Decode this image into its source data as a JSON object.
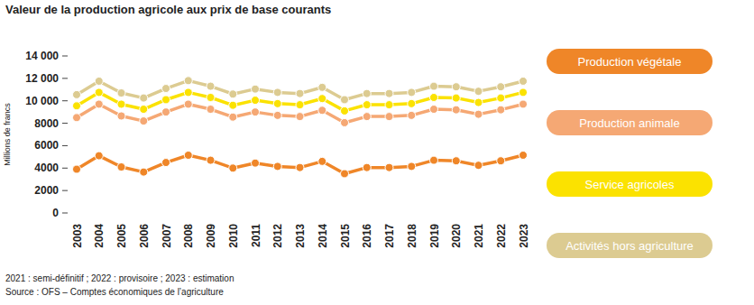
{
  "chart_data": {
    "type": "line",
    "title": "Valeur de la production agricole aux prix de base courants",
    "y_label": "Millions de francs",
    "notes": [
      "2021 : semi-définitif ; 2022 : provisoire ; 2023 : estimation",
      "Source : OFS – Comptes économiques de l’agriculture"
    ],
    "categories": [
      "2003",
      "2004",
      "2005",
      "2006",
      "2007",
      "2008",
      "2009",
      "2010",
      "2011",
      "2012",
      "2013",
      "2014",
      "2015",
      "2016",
      "2017",
      "2018",
      "2019",
      "2020",
      "2021",
      "2022",
      "2023"
    ],
    "stacked": true,
    "marker": "circle",
    "grid": false,
    "legend": "right",
    "ylim": [
      0,
      14000
    ],
    "yticks": [
      0,
      2000,
      4000,
      6000,
      8000,
      {
        "value": 10000,
        "label": "10 000"
      },
      {
        "value": 12000,
        "label": "12 000"
      },
      {
        "value": 14000,
        "label": "14 000"
      }
    ],
    "series": [
      {
        "name": "Production végétale",
        "color": "#ef8628",
        "values": [
          3900,
          5100,
          4100,
          3650,
          4500,
          5150,
          4700,
          4000,
          4450,
          4150,
          4050,
          4600,
          3500,
          4050,
          4050,
          4150,
          4700,
          4650,
          4250,
          4650,
          5150
        ]
      },
      {
        "name": "Production animale",
        "color": "#f5a874",
        "values": [
          4600,
          4600,
          4550,
          4550,
          4500,
          4550,
          4550,
          4550,
          4550,
          4550,
          4550,
          4550,
          4550,
          4550,
          4550,
          4550,
          4550,
          4550,
          4550,
          4550,
          4550
        ]
      },
      {
        "name": "Service agricoles",
        "color": "#fbe200",
        "values": [
          1050,
          1050,
          1050,
          1050,
          1100,
          1050,
          1050,
          1050,
          1050,
          1050,
          1050,
          1050,
          1050,
          1050,
          1050,
          1050,
          1050,
          1050,
          1050,
          1050,
          1050
        ]
      },
      {
        "name": "Activités hors agriculture",
        "color": "#dccb91",
        "values": [
          1000,
          1000,
          1000,
          1000,
          1000,
          1050,
          1000,
          1000,
          1000,
          1000,
          1000,
          1000,
          1000,
          1000,
          1000,
          1000,
          1000,
          1000,
          1000,
          1000,
          1000
        ]
      }
    ]
  }
}
